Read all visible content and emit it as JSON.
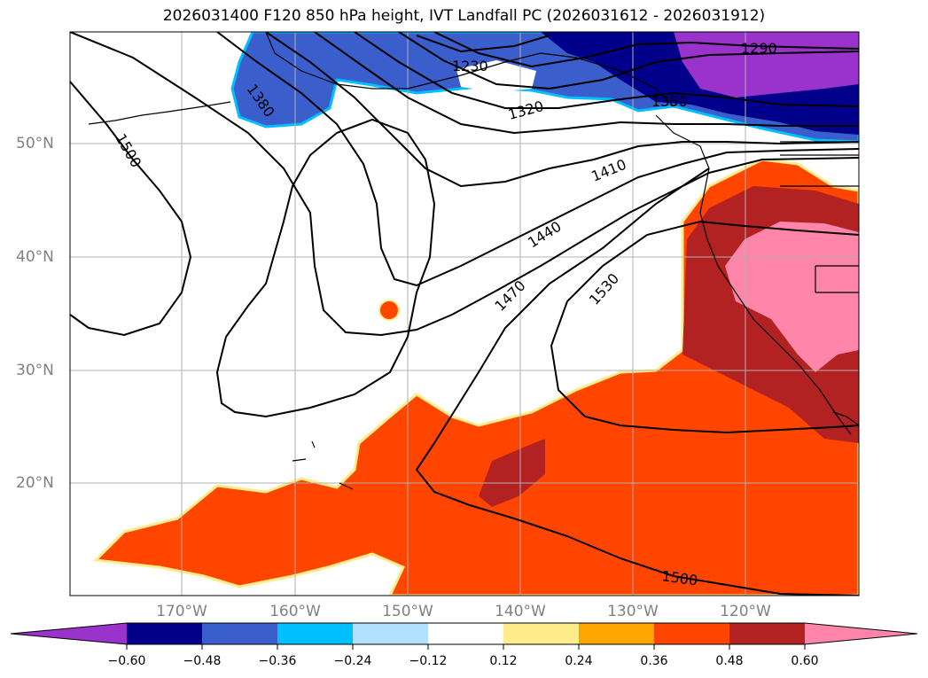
{
  "title": "2026031400 F120 850 hPa height, IVT Landfall PC (2026031612 - 2026031912)",
  "colors": {
    "land": "#ffffff",
    "coast": "#000000",
    "grid": "#b0b0b0",
    "neg_strong": "#000090",
    "neg_mid": "#3355cc",
    "neg_light": "#00bbff",
    "pos_red": "#ff4500",
    "pos_dark": "#b22222",
    "pos_pink": "#ff85aa"
  },
  "map": {
    "lat_labels": [
      "50°N",
      "40°N",
      "30°N",
      "20°N"
    ],
    "lon_labels": [
      "170°W",
      "160°W",
      "150°W",
      "140°W",
      "130°W",
      "120°W"
    ],
    "contour_labels": [
      "1230",
      "1290",
      "1320",
      "1350",
      "1380",
      "1410",
      "1440",
      "1470",
      "1500",
      "1500",
      "1530"
    ]
  },
  "colorbar": {
    "colors": [
      "#9933cc",
      "#00008b",
      "#3a5fcd",
      "#00bfff",
      "#b0e2ff",
      "#ffffff",
      "#ffec8b",
      "#ffa500",
      "#ff4500",
      "#b22222",
      "#ff85aa"
    ],
    "tick_labels": [
      "−0.60",
      "−0.48",
      "−0.36",
      "−0.24",
      "−0.12",
      "0.12",
      "0.24",
      "0.36",
      "0.48",
      "0.60"
    ]
  }
}
